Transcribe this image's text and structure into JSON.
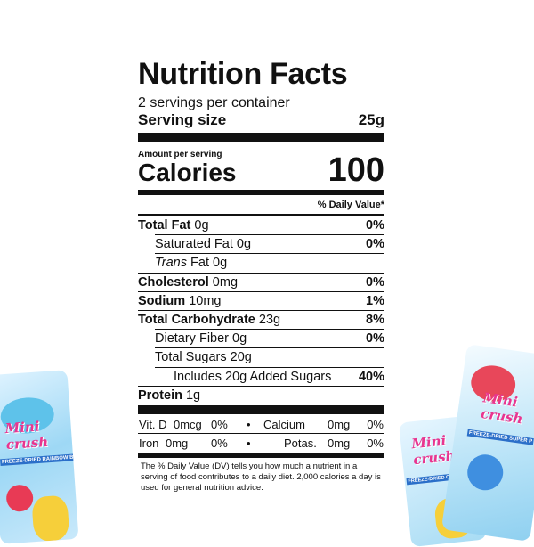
{
  "title": "Nutrition Facts",
  "servings": "2 servings per container",
  "serving_size": {
    "label": "Serving size",
    "value": "25g"
  },
  "amount_per_serving": "Amount per serving",
  "calories": {
    "label": "Calories",
    "value": "100"
  },
  "daily_value_header": "% Daily Value*",
  "nutrients": [
    {
      "name": "Total Fat",
      "amount": "0g",
      "dv": "0%",
      "bold": true,
      "indent": 0
    },
    {
      "name": "Saturated Fat",
      "amount": "0g",
      "dv": "0%",
      "bold": false,
      "indent": 1
    },
    {
      "name_italic": "Trans",
      "name": "Fat",
      "amount": "0g",
      "bold": false,
      "indent": 1
    },
    {
      "name": "Cholesterol",
      "amount": "0mg",
      "dv": "0%",
      "bold": true,
      "indent": 0
    },
    {
      "name": "Sodium",
      "amount": "10mg",
      "dv": "1%",
      "bold": true,
      "indent": 0
    },
    {
      "name": "Total Carbohydrate",
      "amount": "23g",
      "dv": "8%",
      "bold": true,
      "indent": 0
    },
    {
      "name": "Dietary Fiber",
      "amount": "0g",
      "dv": "0%",
      "bold": false,
      "indent": 1
    },
    {
      "name": "Total Sugars",
      "amount": "20g",
      "bold": false,
      "indent": 1
    },
    {
      "name": "Includes 20g Added Sugars",
      "dv": "40%",
      "bold": false,
      "indent": 2
    },
    {
      "name": "Protein",
      "amount": "1g",
      "bold": true,
      "indent": 0
    }
  ],
  "micronutrients": [
    [
      {
        "name": "Vit. D",
        "amount": "0mcg",
        "dv": "0%"
      },
      {
        "name": "Calcium",
        "amount": "0mg",
        "dv": "0%"
      }
    ],
    [
      {
        "name": "Iron",
        "amount": "0mg",
        "dv": "0%"
      },
      {
        "name": "Potas.",
        "amount": "0mg",
        "dv": "0%"
      }
    ]
  ],
  "footnote": "The % Daily Value (DV) tells you how much a nutrient in a serving of food contributes to a daily diet. 2,000 calories a day is used for general nutrition advice.",
  "packages": [
    {
      "brand": "Mini crush",
      "flavor": "FREEZE-DRIED RAINBOW BITES"
    },
    {
      "brand": "Mini crush",
      "flavor": "FREEZE-DRIED CRUNCHY WORMS"
    },
    {
      "brand": "Mini crush",
      "flavor": "FREEZE-DRIED SUPER P"
    }
  ]
}
